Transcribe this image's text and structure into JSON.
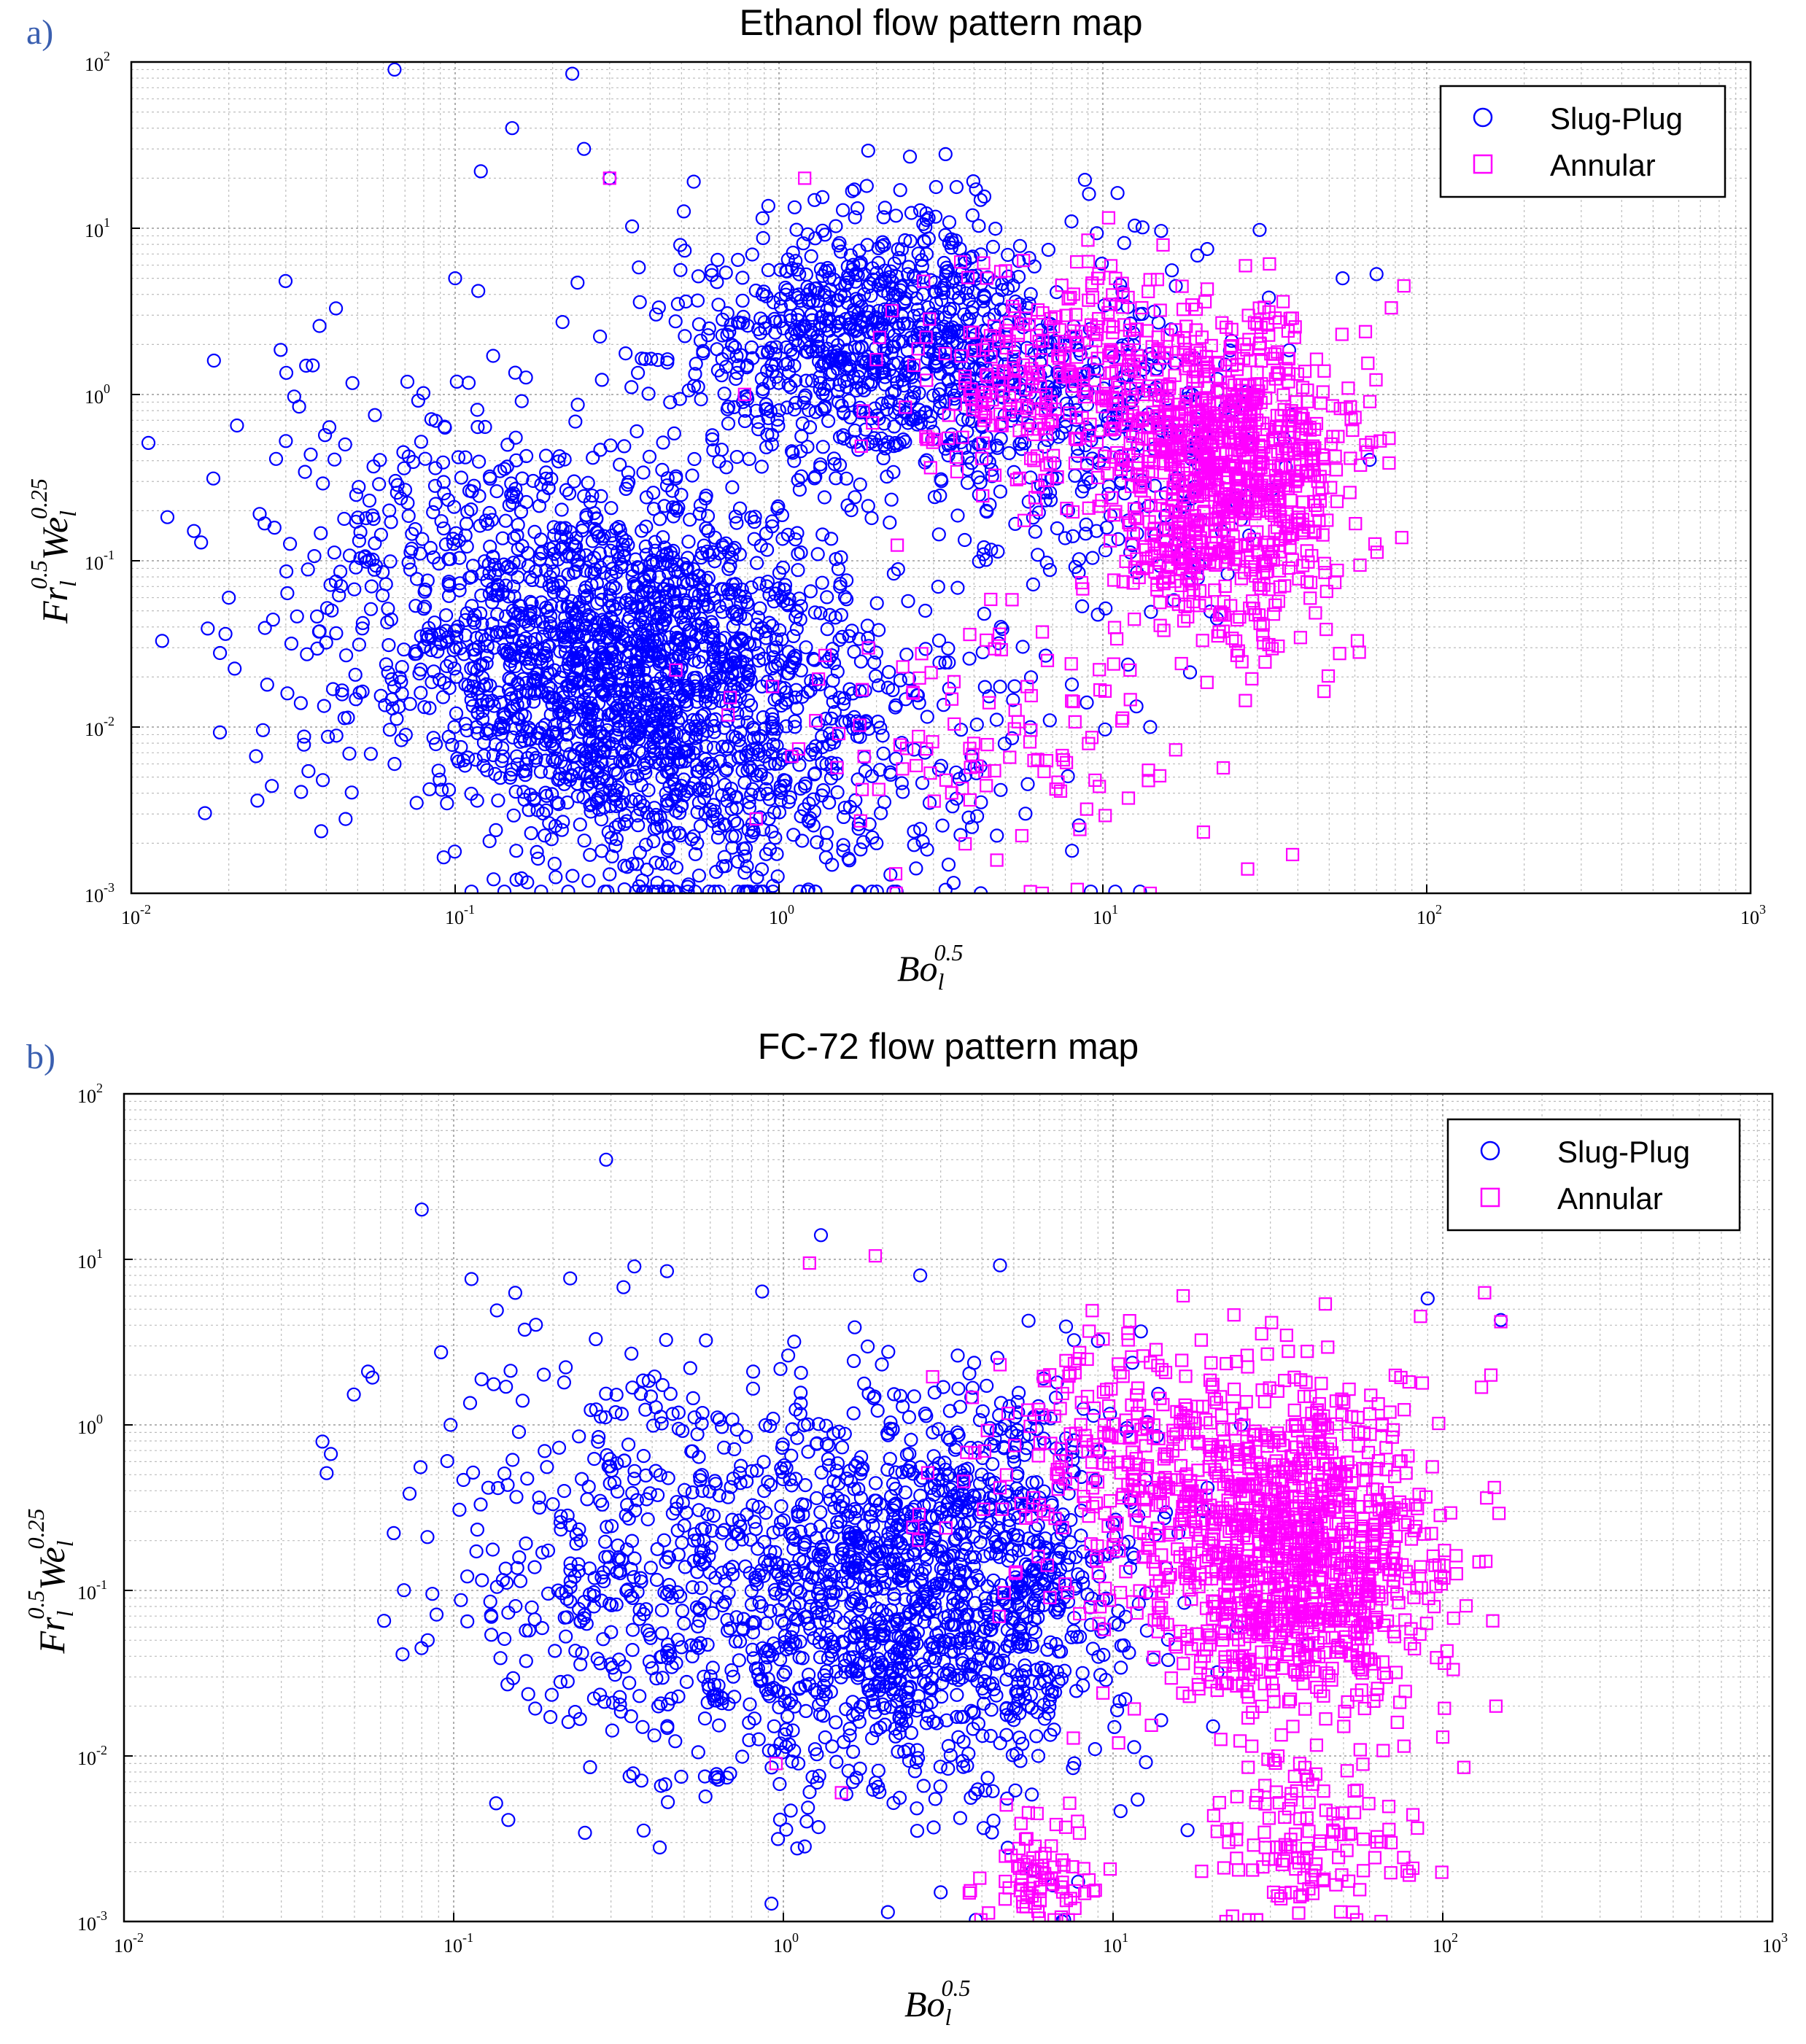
{
  "chart_data": [
    {
      "panel_label": "a)",
      "type": "scatter",
      "title": "Ethanol flow pattern map",
      "xscale": "log",
      "yscale": "log",
      "xlim": [
        0.01,
        1000
      ],
      "ylim": [
        0.001,
        100
      ],
      "xticks": [
        "10",
        "10",
        "10",
        "10",
        "10",
        "10"
      ],
      "xtick_exps": [
        "-2",
        "-1",
        "0",
        "1",
        "2",
        "3"
      ],
      "yticks": [
        "10",
        "10",
        "10",
        "10",
        "10",
        "10"
      ],
      "ytick_exps": [
        "-3",
        "-2",
        "-1",
        "0",
        "1",
        "2"
      ],
      "xlabel": "Bo",
      "xlabel_sub": "l",
      "xlabel_sup": "0.5",
      "ylabel": {
        "fr": "Fr",
        "fr_sub": "l",
        "fr_sup": "0.5",
        "we": "We",
        "we_sub": "l",
        "we_sup": "0.25"
      },
      "grid": true,
      "legend_position": "top-right",
      "series": [
        {
          "name": "Slug-Plug",
          "marker": "circle",
          "color": "#0000ff",
          "clusters": [
            {
              "cx": 0.35,
              "cy": 0.02,
              "sx": 0.3,
              "sy": 0.55,
              "n": 1400
            },
            {
              "cx": 0.15,
              "cy": 0.06,
              "sx": 0.32,
              "sy": 0.55,
              "n": 350
            },
            {
              "cx": 2.0,
              "cy": 2.0,
              "sx": 0.32,
              "sy": 0.4,
              "n": 950
            },
            {
              "cx": 1.0,
              "cy": 0.01,
              "sx": 0.4,
              "sy": 0.55,
              "n": 500
            },
            {
              "cx": 10,
              "cy": 0.5,
              "sx": 0.25,
              "sy": 0.5,
              "n": 300
            },
            {
              "cx": 0.05,
              "cy": 0.1,
              "sx": 0.25,
              "sy": 0.8,
              "n": 120
            }
          ],
          "points": [
            [
              0.018,
              1.6
            ],
            [
              0.02,
              0.06
            ],
            [
              0.028,
              0.41
            ],
            [
              0.065,
              90
            ],
            [
              0.12,
              22
            ],
            [
              0.15,
              40
            ],
            [
              0.23,
              85
            ],
            [
              0.25,
              30
            ],
            [
              0.1,
              5
            ],
            [
              0.3,
              20
            ],
            [
              0.065,
              0.006
            ],
            [
              2.0,
              0.002
            ],
            [
              4.2,
              0.001
            ],
            [
              0.3,
              0.0013
            ],
            [
              21,
              7.5
            ],
            [
              8,
              11
            ],
            [
              55,
              5
            ],
            [
              70,
              5.3
            ],
            [
              14,
              0.01
            ],
            [
              30,
              0.3
            ]
          ]
        },
        {
          "name": "Annular",
          "marker": "square",
          "color": "#ff00ff",
          "clusters": [
            {
              "cx": 25,
              "cy": 0.3,
              "sx": 0.18,
              "sy": 0.45,
              "n": 900
            },
            {
              "cx": 8,
              "cy": 1.2,
              "sx": 0.28,
              "sy": 0.35,
              "n": 350
            },
            {
              "cx": 5,
              "cy": 0.01,
              "sx": 0.35,
              "sy": 0.4,
              "n": 120
            }
          ],
          "points": [
            [
              1.2,
              20
            ],
            [
              0.3,
              20
            ],
            [
              2.3,
              0.001
            ],
            [
              6.5,
              0.001
            ],
            [
              14,
              0.001
            ],
            [
              28,
              0.0014
            ],
            [
              0.48,
              0.022
            ],
            [
              85,
              4.5
            ],
            [
              0.85,
              0.0028
            ]
          ]
        }
      ]
    },
    {
      "panel_label": "b)",
      "type": "scatter",
      "title": "FC-72 flow pattern map",
      "xscale": "log",
      "yscale": "log",
      "xlim": [
        0.01,
        1000
      ],
      "ylim": [
        0.001,
        100
      ],
      "xticks": [
        "10",
        "10",
        "10",
        "10",
        "10",
        "10"
      ],
      "xtick_exps": [
        "-2",
        "-1",
        "0",
        "1",
        "2",
        "3"
      ],
      "yticks": [
        "10",
        "10",
        "10",
        "10",
        "10",
        "10"
      ],
      "ytick_exps": [
        "-3",
        "-2",
        "-1",
        "0",
        "1",
        "2"
      ],
      "xlabel": "Bo",
      "xlabel_sub": "l",
      "xlabel_sup": "0.5",
      "ylabel": {
        "fr": "Fr",
        "fr_sub": "l",
        "fr_sup": "0.5",
        "we": "We",
        "we_sub": "l",
        "we_sup": "0.25"
      },
      "grid": true,
      "legend_position": "top-right",
      "series": [
        {
          "name": "Slug-Plug",
          "marker": "circle",
          "color": "#0000ff",
          "clusters": [
            {
              "cx": 3,
              "cy": 0.1,
              "sx": 0.3,
              "sy": 0.6,
              "n": 1300
            },
            {
              "cx": 0.6,
              "cy": 0.1,
              "sx": 0.35,
              "sy": 0.7,
              "n": 500
            },
            {
              "cx": 0.25,
              "cy": 0.3,
              "sx": 0.3,
              "sy": 0.6,
              "n": 150
            }
          ],
          "points": [
            [
              0.08,
              20
            ],
            [
              0.29,
              40
            ],
            [
              0.055,
              2.1
            ],
            [
              0.11,
              0.065
            ],
            [
              1.3,
              14
            ],
            [
              2.6,
              8
            ],
            [
              90,
              5.8
            ],
            [
              150,
              4.3
            ],
            [
              7,
              0.001
            ],
            [
              3,
              0.0015
            ]
          ]
        },
        {
          "name": "Annular",
          "marker": "square",
          "color": "#ff00ff",
          "clusters": [
            {
              "cx": 35,
              "cy": 0.15,
              "sx": 0.22,
              "sy": 0.5,
              "n": 1100
            },
            {
              "cx": 12,
              "cy": 0.6,
              "sx": 0.25,
              "sy": 0.4,
              "n": 300
            },
            {
              "cx": 6,
              "cy": 0.002,
              "sx": 0.08,
              "sy": 0.2,
              "n": 80
            },
            {
              "cx": 40,
              "cy": 0.003,
              "sx": 0.15,
              "sy": 0.25,
              "n": 120
            }
          ],
          "points": [
            [
              1.2,
              9.5
            ],
            [
              1.9,
              10.5
            ],
            [
              150,
              4.2
            ],
            [
              140,
              2.0
            ],
            [
              145,
              0.02
            ],
            [
              100,
              0.013
            ],
            [
              0.95,
              0.009
            ],
            [
              1.5,
              0.006
            ],
            [
              22,
              0.001
            ],
            [
              65,
              0.001
            ]
          ]
        }
      ]
    }
  ]
}
